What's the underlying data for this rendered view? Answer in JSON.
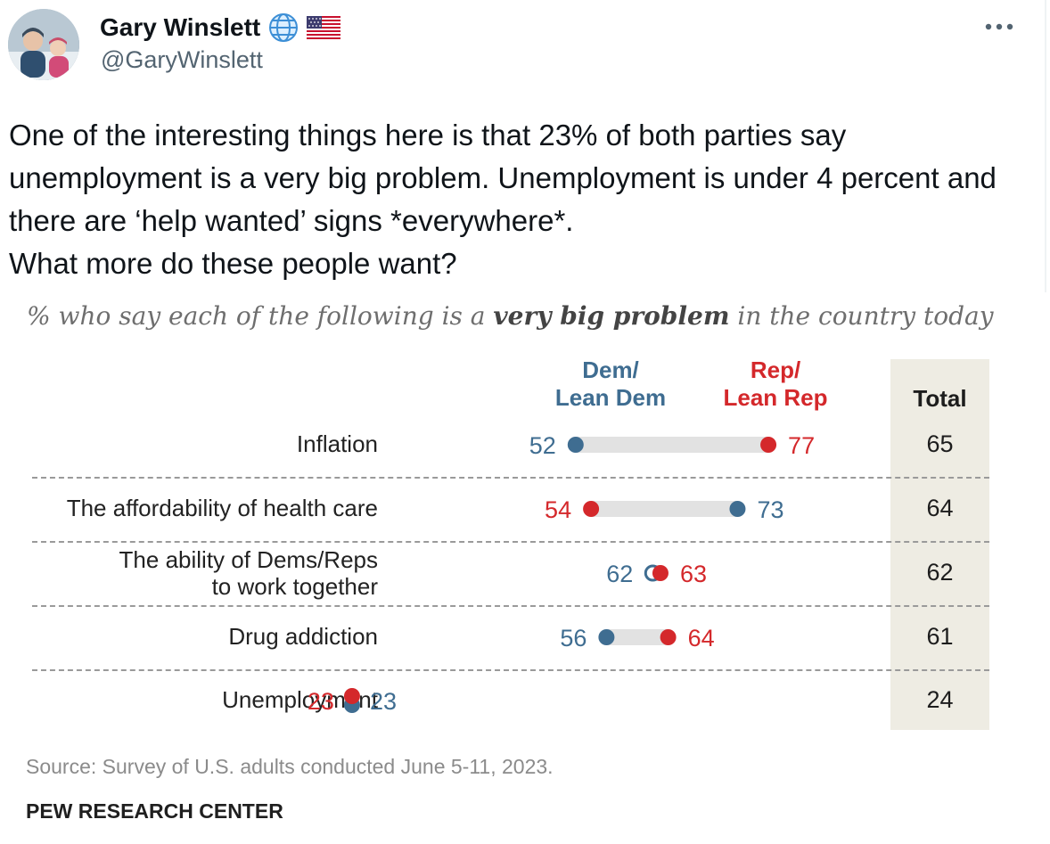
{
  "author": {
    "display_name": "Gary Winslett",
    "handle": "@GaryWinslett",
    "badges": [
      "globe-icon",
      "us-flag-icon"
    ]
  },
  "more_icon": "more-horizontal-icon",
  "tweet": {
    "text": "One of the interesting things here is that 23% of both parties say unemployment is a very big problem. Unemployment is under 4 percent and there are ‘help wanted’ signs *everywhere*.\nWhat more do these people want?"
  },
  "chart": {
    "heading_before": "% who say each of the following is a",
    "heading_bold": "very big problem",
    "heading_after": "in the country today",
    "dem_header": "Dem/\nLean Dem",
    "rep_header": "Rep/\nLean Rep",
    "total_header": "Total",
    "source": "Source: Survey of U.S. adults conducted June 5-11, 2023.",
    "brand": "PEW RESEARCH CENTER",
    "colors": {
      "dem": "#3f6d91",
      "rep": "#d4282b",
      "bar": "#e2e2e2",
      "band": "#eeece3"
    }
  },
  "chart_data": {
    "type": "scatter",
    "title": "% who say each of the following is a very big problem in the country today",
    "categories": [
      "Inflation",
      "The affordability of health care",
      "The ability of Dems/Reps\nto work together",
      "Drug addiction",
      "Unemployment"
    ],
    "series": [
      {
        "name": "Dem/ Lean Dem",
        "values": [
          52,
          73,
          62,
          56,
          23
        ]
      },
      {
        "name": "Rep/ Lean Rep",
        "values": [
          77,
          54,
          63,
          64,
          23
        ]
      }
    ],
    "total": {
      "name": "Total",
      "values": [
        65,
        64,
        62,
        61,
        24
      ]
    }
  }
}
